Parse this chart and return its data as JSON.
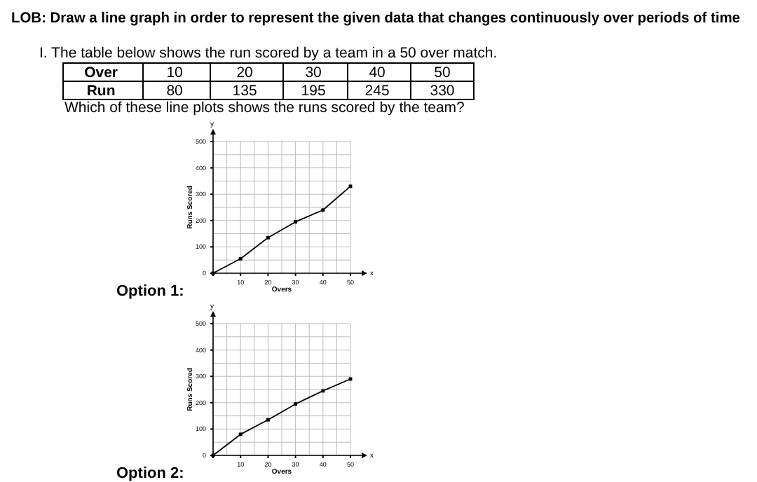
{
  "chart_data": [
    {
      "type": "line",
      "title": "Option 1:",
      "xlabel": "Overs",
      "ylabel": "Runs Scored",
      "x": [
        0,
        10,
        20,
        30,
        40,
        50
      ],
      "series": [
        {
          "color": "#000000",
          "values": [
            0,
            55,
            135,
            195,
            240,
            330
          ]
        }
      ],
      "xlim": [
        0,
        50
      ],
      "ylim": [
        0,
        500
      ],
      "xticks": [
        {
          "value": 0,
          "label": null
        },
        10,
        20,
        30,
        40,
        50
      ],
      "yticks": [
        0,
        100,
        200,
        300,
        400,
        500
      ],
      "grid": true,
      "marker": "square",
      "annotations": [
        "x",
        "y",
        "LOB: Draw a line graph in order to represent the given data that changes continuously over periods of time",
        "I.  The table below shows the run scored by a team in a 50 over match.",
        "Over",
        "10",
        "20",
        "30",
        "40",
        "50",
        "Run",
        "80",
        "135",
        "195",
        "245",
        "330",
        "Which of these line plots shows the runs scored by the team?"
      ]
    },
    {
      "type": "line",
      "title": "Option 2:",
      "xlabel": "Overs",
      "ylabel": "Runs Scored",
      "x": [
        0,
        10,
        20,
        30,
        40,
        50
      ],
      "series": [
        {
          "color": "#000000",
          "values": [
            0,
            80,
            135,
            195,
            245,
            290
          ]
        }
      ],
      "xlim": [
        0,
        50
      ],
      "ylim": [
        0,
        500
      ],
      "xticks": [
        {
          "value": 0,
          "label": null
        },
        10,
        20,
        30,
        40,
        50
      ],
      "yticks": [
        0,
        100,
        200,
        300,
        400,
        500
      ],
      "grid": true,
      "marker": "square",
      "annotations": [
        "x",
        "y"
      ]
    }
  ]
}
